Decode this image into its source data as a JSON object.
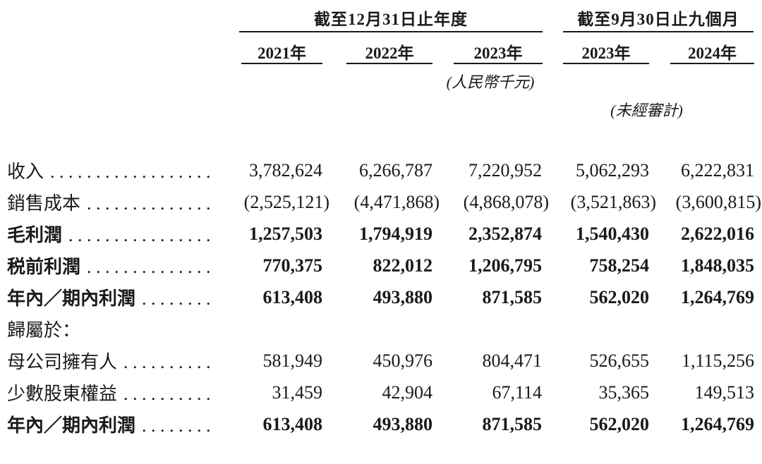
{
  "table": {
    "col_groups": [
      {
        "title": "截至12月31日止年度",
        "years": [
          "2021年",
          "2022年",
          "2023年"
        ]
      },
      {
        "title": "截至9月30日止九個月",
        "years": [
          "2023年",
          "2024年"
        ]
      }
    ],
    "unit_note": "(人民幣千元)",
    "unaudited_note": "(未經審計)",
    "rows": [
      {
        "label": "收入",
        "values": [
          "3,782,624",
          "6,266,787",
          "7,220,952",
          "5,062,293",
          "6,222,831"
        ]
      },
      {
        "label": "銷售成本",
        "values": [
          "(2,525,121)",
          "(4,471,868)",
          "(4,868,078)",
          "(3,521,863)",
          "(3,600,815)"
        ]
      },
      {
        "label": "毛利潤",
        "values": [
          "1,257,503",
          "1,794,919",
          "2,352,874",
          "1,540,430",
          "2,622,016"
        ]
      },
      {
        "label": "税前利潤",
        "values": [
          "770,375",
          "822,012",
          "1,206,795",
          "758,254",
          "1,848,035"
        ]
      },
      {
        "label": "年內／期內利潤",
        "values": [
          "613,408",
          "493,880",
          "871,585",
          "562,020",
          "1,264,769"
        ]
      },
      {
        "label": "歸屬於：",
        "values": [
          "",
          "",
          "",
          "",
          ""
        ]
      },
      {
        "label": "母公司擁有人",
        "values": [
          "581,949",
          "450,976",
          "804,471",
          "526,655",
          "1,115,256"
        ]
      },
      {
        "label": "少數股東權益",
        "values": [
          "31,459",
          "42,904",
          "67,114",
          "35,365",
          "149,513"
        ]
      },
      {
        "label": "年內／期內利潤",
        "values": [
          "613,408",
          "493,880",
          "871,585",
          "562,020",
          "1,264,769"
        ]
      }
    ]
  }
}
